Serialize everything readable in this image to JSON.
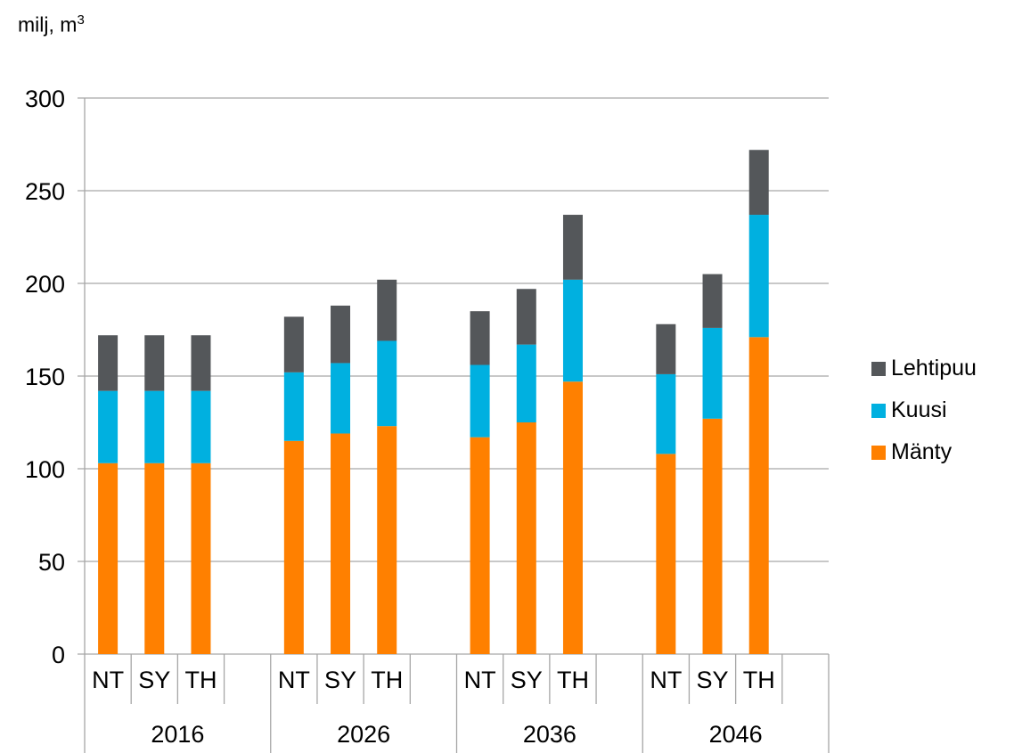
{
  "chart_data": {
    "type": "bar",
    "stacked": true,
    "ylabel": "milj, m",
    "ylabel_superscript": "3",
    "ylim": [
      0,
      300
    ],
    "yticks": [
      0,
      50,
      100,
      150,
      200,
      250,
      300
    ],
    "grid": true,
    "legend_position": "right",
    "groups": [
      "2016",
      "2026",
      "2036",
      "2046"
    ],
    "categories": [
      "NT",
      "SY",
      "TH"
    ],
    "series": [
      {
        "name": "Mänty",
        "color": "#FF8000",
        "values": [
          [
            103,
            103,
            103
          ],
          [
            115,
            119,
            123
          ],
          [
            117,
            125,
            147
          ],
          [
            108,
            127,
            171
          ]
        ]
      },
      {
        "name": "Kuusi",
        "color": "#00B0E0",
        "values": [
          [
            39,
            39,
            39
          ],
          [
            37,
            38,
            46
          ],
          [
            39,
            42,
            55
          ],
          [
            43,
            49,
            66
          ]
        ]
      },
      {
        "name": "Lehtipuu",
        "color": "#54575A",
        "values": [
          [
            30,
            30,
            30
          ],
          [
            30,
            31,
            33
          ],
          [
            29,
            30,
            35
          ],
          [
            27,
            29,
            35
          ]
        ]
      }
    ],
    "legend_order": [
      "Lehtipuu",
      "Kuusi",
      "Mänty"
    ]
  }
}
